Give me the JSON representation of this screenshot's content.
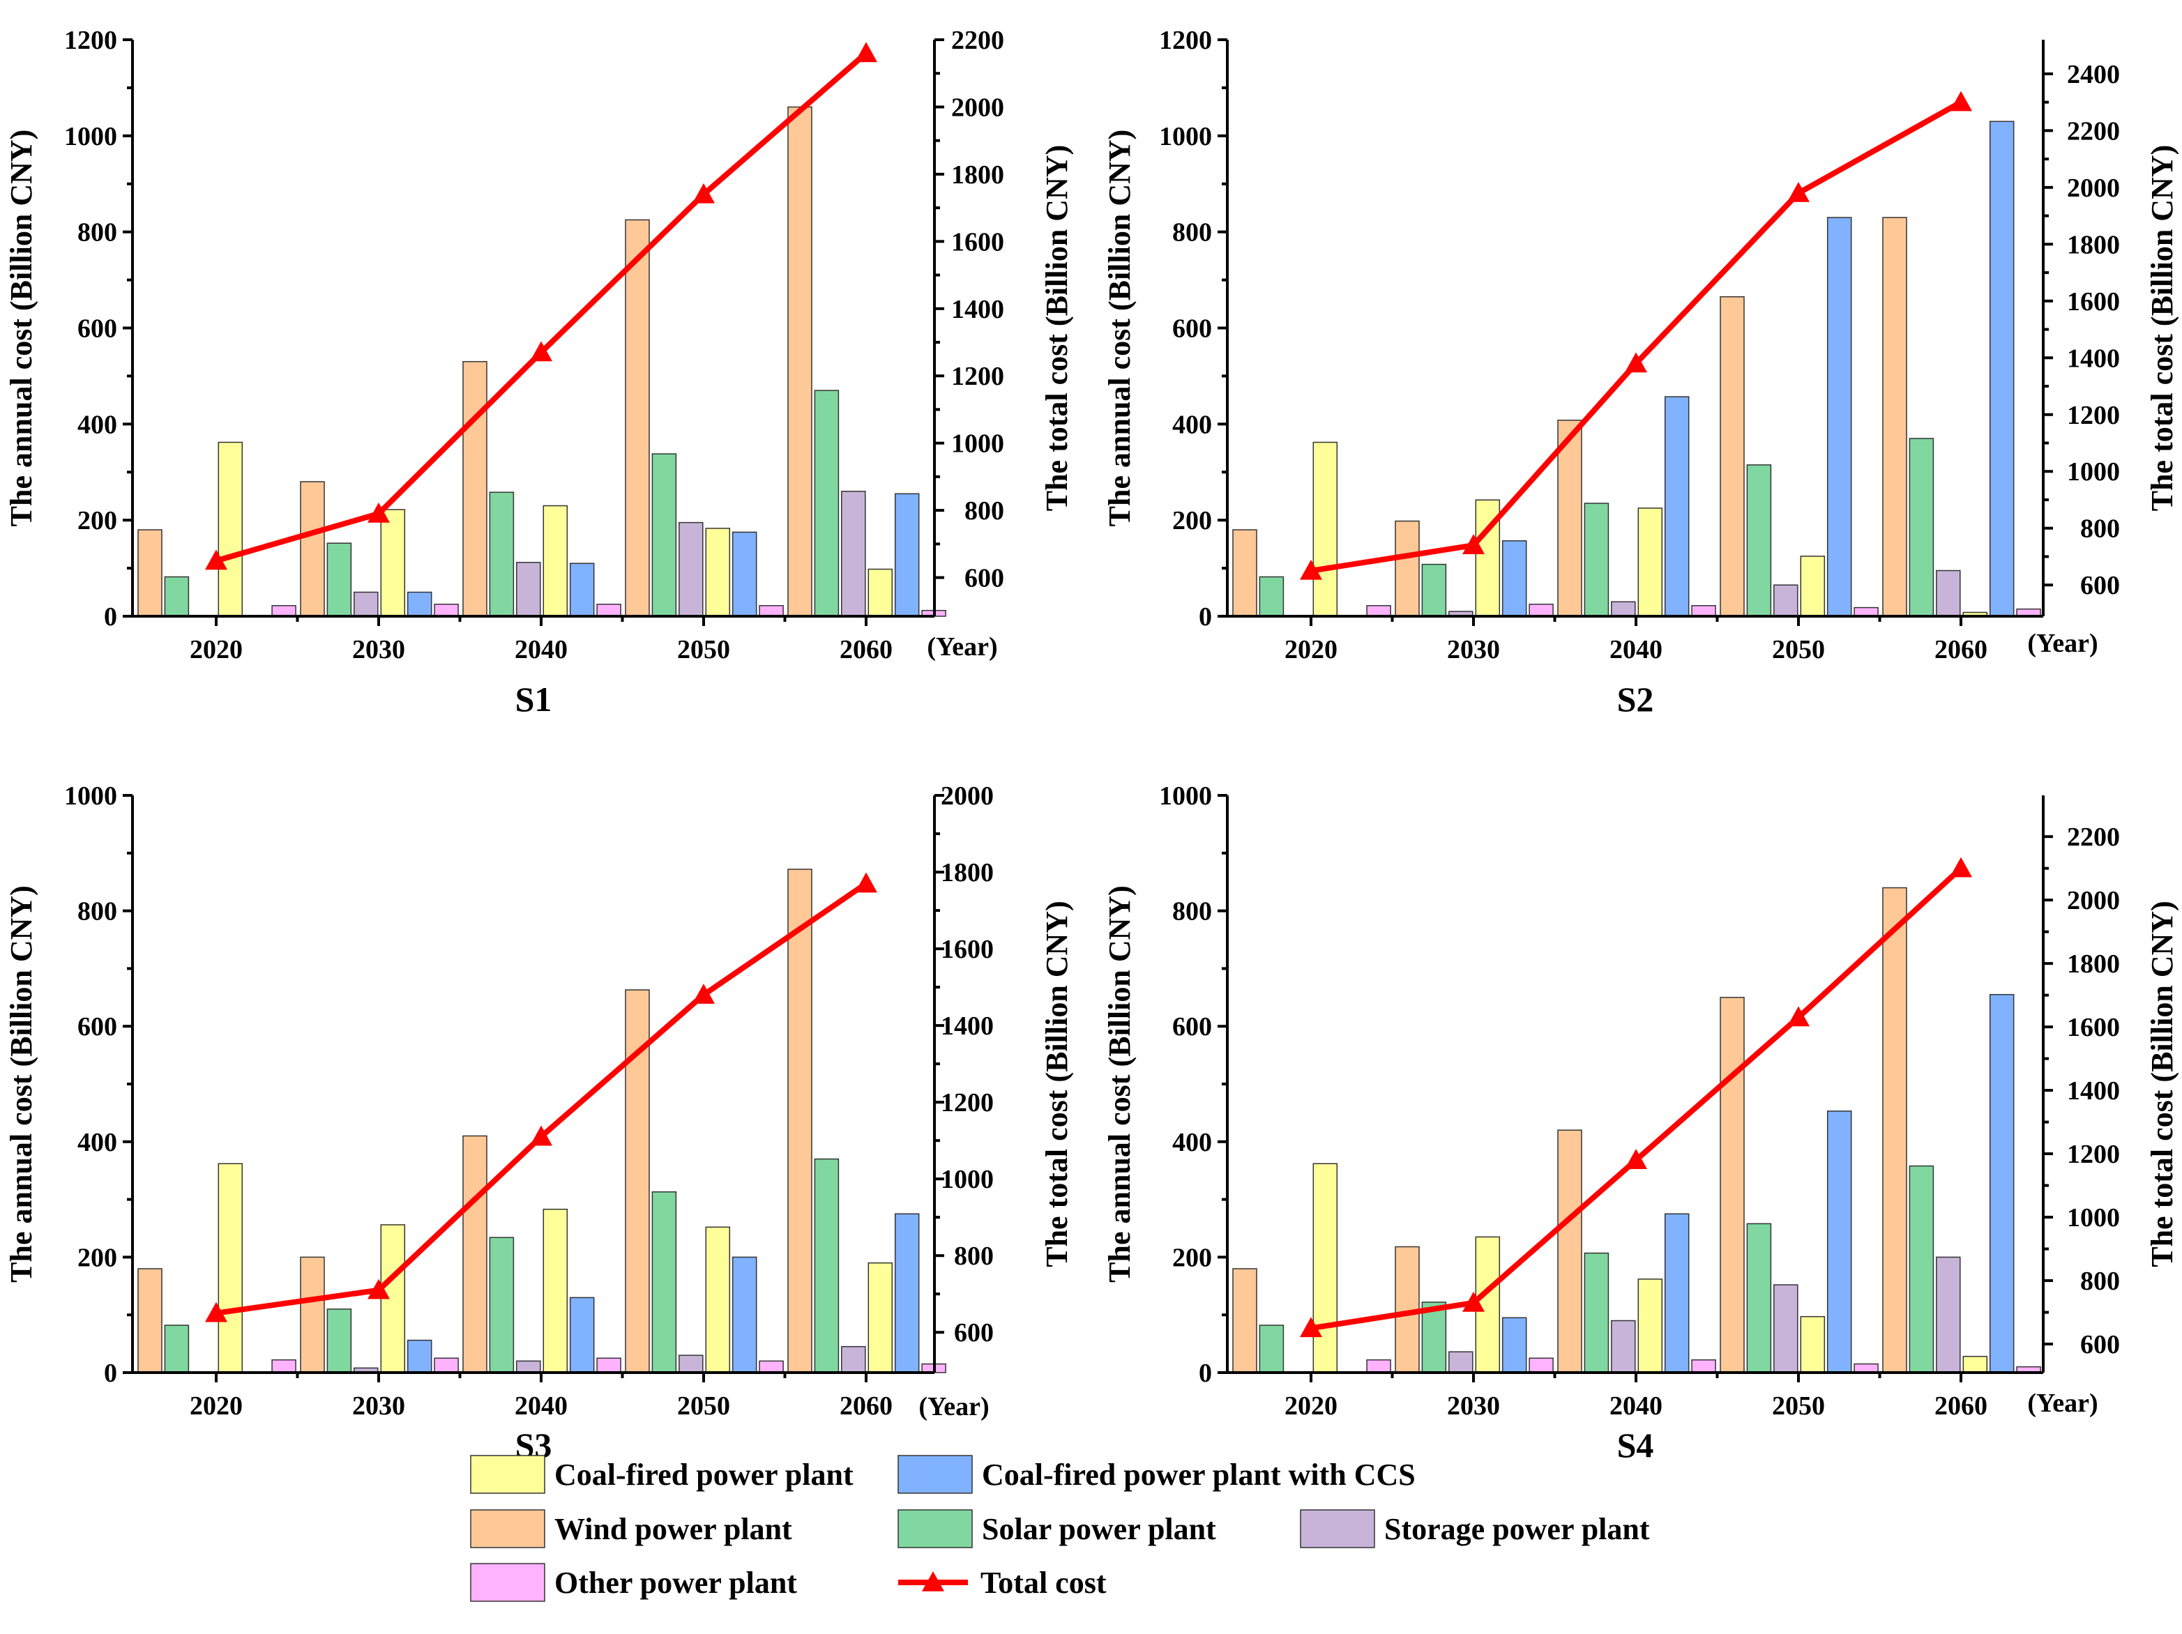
{
  "chart_data": {
    "type": "bar",
    "colors": {
      "coal": "#ffff99",
      "ccs": "#80b2ff",
      "wind": "#ffc897",
      "solar": "#80d8a0",
      "storage": "#c8b4d9",
      "other": "#ffb3ff",
      "total": "#ff0000"
    },
    "year_unit": "(Year)",
    "legend": [
      {
        "key": "coal",
        "label": "Coal-fired power plant"
      },
      {
        "key": "ccs",
        "label": "Coal-fired power plant with CCS"
      },
      {
        "key": "wind",
        "label": "Wind power plant"
      },
      {
        "key": "solar",
        "label": "Solar power plant"
      },
      {
        "key": "storage",
        "label": "Storage power plant"
      },
      {
        "key": "other",
        "label": "Other power plant"
      },
      {
        "key": "total",
        "label": "Total cost"
      }
    ],
    "bar_order": [
      "wind",
      "solar",
      "storage",
      "coal",
      "ccs",
      "other"
    ],
    "panels": [
      {
        "title": "S1",
        "ylabel": "The annual cost (Billion CNY)",
        "y2label": "The total cost (Billion CNY)",
        "categories": [
          "2020",
          "2030",
          "2040",
          "2050",
          "2060"
        ],
        "ylim": [
          0,
          1200
        ],
        "yticks": [
          "0",
          "200",
          "400",
          "600",
          "800",
          "1000",
          "1200"
        ],
        "y2lim": [
          485,
          2200
        ],
        "y2ticks": [
          "600",
          "800",
          "1000",
          "1200",
          "1400",
          "1600",
          "1800",
          "2000",
          "2200"
        ],
        "series": {
          "wind": [
            180,
            280,
            530,
            825,
            1060
          ],
          "solar": [
            82,
            152,
            258,
            338,
            470
          ],
          "storage": [
            0,
            50,
            112,
            195,
            260
          ],
          "coal": [
            362,
            222,
            230,
            183,
            98
          ],
          "ccs": [
            0,
            50,
            110,
            175,
            255
          ],
          "other": [
            22,
            25,
            25,
            22,
            12
          ]
        },
        "total": [
          650,
          790,
          1270,
          1740,
          2160
        ]
      },
      {
        "title": "S2",
        "ylabel": "The annual cost (Billion CNY)",
        "y2label": "The total cost (Billion CNY)",
        "categories": [
          "2020",
          "2030",
          "2040",
          "2050",
          "2060"
        ],
        "ylim": [
          0,
          1200
        ],
        "yticks": [
          "0",
          "200",
          "400",
          "600",
          "800",
          "1000",
          "1200"
        ],
        "y2lim": [
          490,
          2520
        ],
        "y2ticks": [
          "600",
          "800",
          "1000",
          "1200",
          "1400",
          "1600",
          "1800",
          "2000",
          "2200",
          "2400"
        ],
        "series": {
          "wind": [
            180,
            198,
            408,
            665,
            830
          ],
          "solar": [
            82,
            108,
            235,
            315,
            370
          ],
          "storage": [
            0,
            10,
            30,
            65,
            95
          ],
          "coal": [
            362,
            242,
            225,
            125,
            8
          ],
          "ccs": [
            0,
            157,
            457,
            830,
            1030
          ],
          "other": [
            22,
            25,
            22,
            18,
            15
          ]
        },
        "total": [
          650,
          740,
          1380,
          1980,
          2300
        ]
      },
      {
        "title": "S3",
        "ylabel": "The annual cost (Billion CNY)",
        "y2label": "The total cost (Billion CNY)",
        "categories": [
          "2020",
          "2030",
          "2040",
          "2050",
          "2060"
        ],
        "ylim": [
          0,
          1000
        ],
        "yticks": [
          "0",
          "200",
          "400",
          "600",
          "800",
          "1000"
        ],
        "y2lim": [
          495,
          2000
        ],
        "y2ticks": [
          "600",
          "800",
          "1000",
          "1200",
          "1400",
          "1600",
          "1800",
          "2000"
        ],
        "series": {
          "wind": [
            180,
            200,
            410,
            663,
            872
          ],
          "solar": [
            82,
            110,
            234,
            313,
            370
          ],
          "storage": [
            0,
            8,
            20,
            30,
            45
          ],
          "coal": [
            362,
            256,
            283,
            252,
            190
          ],
          "ccs": [
            0,
            56,
            130,
            200,
            275
          ],
          "other": [
            22,
            25,
            25,
            20,
            15
          ]
        },
        "total": [
          650,
          710,
          1110,
          1480,
          1770
        ]
      },
      {
        "title": "S4",
        "ylabel": "The annual cost (Billion CNY)",
        "y2label": "The total cost (Billion CNY)",
        "categories": [
          "2020",
          "2030",
          "2040",
          "2050",
          "2060"
        ],
        "ylim": [
          0,
          1000
        ],
        "yticks": [
          "0",
          "200",
          "400",
          "600",
          "800",
          "1000"
        ],
        "y2lim": [
          510,
          2330
        ],
        "y2ticks": [
          "600",
          "800",
          "1000",
          "1200",
          "1400",
          "1600",
          "1800",
          "2000",
          "2200"
        ],
        "series": {
          "wind": [
            180,
            218,
            420,
            650,
            840
          ],
          "solar": [
            82,
            122,
            207,
            258,
            358
          ],
          "storage": [
            0,
            36,
            90,
            152,
            200
          ],
          "coal": [
            362,
            235,
            162,
            97,
            28
          ],
          "ccs": [
            0,
            95,
            275,
            453,
            655
          ],
          "other": [
            22,
            25,
            22,
            15,
            10
          ]
        },
        "total": [
          650,
          730,
          1180,
          1630,
          2100
        ]
      }
    ]
  }
}
